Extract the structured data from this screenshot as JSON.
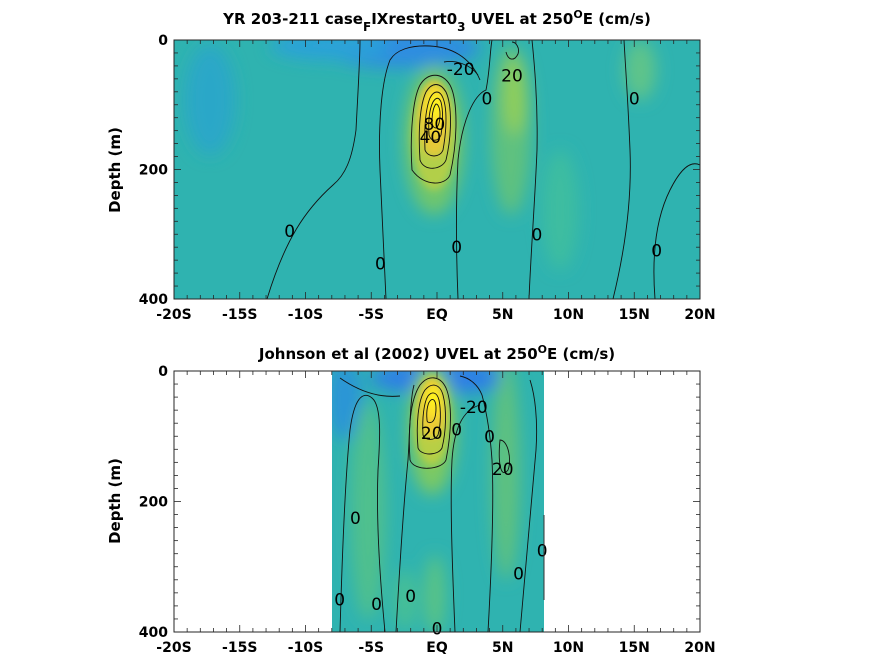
{
  "chart_data": [
    {
      "type": "heatmap",
      "title_main": "YR 203-211 case",
      "title_sub1": "F",
      "title_mid": "IXrestart0",
      "title_sub2": "3",
      "title_tail": " UVEL at 250",
      "title_sup": "O",
      "title_end": "E (cm/s)",
      "ylabel": "Depth (m)",
      "xticks": [
        "-20S",
        "-15S",
        "-10S",
        "-5S",
        "EQ",
        "5N",
        "10N",
        "15N",
        "20N"
      ],
      "yticks": [
        "0",
        "200",
        "400"
      ],
      "xlim": [
        -20,
        20
      ],
      "ylim": [
        0,
        400
      ],
      "data_xrange": [
        -20,
        20
      ],
      "contour_labels": [
        {
          "text": "-20",
          "x": 1.8,
          "y": 45
        },
        {
          "text": "20",
          "x": 5.7,
          "y": 55
        },
        {
          "text": "0",
          "x": 3.8,
          "y": 90
        },
        {
          "text": "0",
          "x": 15.0,
          "y": 90
        },
        {
          "text": "80",
          "x": -0.2,
          "y": 130
        },
        {
          "text": "40",
          "x": -0.5,
          "y": 150
        },
        {
          "text": "0",
          "x": -11.2,
          "y": 295
        },
        {
          "text": "0",
          "x": -4.3,
          "y": 345
        },
        {
          "text": "0",
          "x": 1.5,
          "y": 320
        },
        {
          "text": "0",
          "x": 7.6,
          "y": 300
        },
        {
          "text": "0",
          "x": 16.7,
          "y": 325
        }
      ]
    },
    {
      "type": "heatmap",
      "title_main": "Johnson et al (2002) UVEL at 250",
      "title_sup": "O",
      "title_end": "E (cm/s)",
      "ylabel": "Depth (m)",
      "xticks": [
        "-20S",
        "-15S",
        "-10S",
        "-5S",
        "EQ",
        "5N",
        "10N",
        "15N",
        "20N"
      ],
      "yticks": [
        "0",
        "200",
        "400"
      ],
      "xlim": [
        -20,
        20
      ],
      "ylim": [
        0,
        400
      ],
      "data_xrange": [
        -8,
        8.2
      ],
      "contour_labels": [
        {
          "text": "-20",
          "x": 2.8,
          "y": 55
        },
        {
          "text": "20",
          "x": -0.4,
          "y": 95
        },
        {
          "text": "0",
          "x": 1.5,
          "y": 90
        },
        {
          "text": "0",
          "x": 4.0,
          "y": 100
        },
        {
          "text": "20",
          "x": 5.0,
          "y": 150
        },
        {
          "text": "0",
          "x": -6.2,
          "y": 225
        },
        {
          "text": "0",
          "x": 8.0,
          "y": 275
        },
        {
          "text": "0",
          "x": 6.2,
          "y": 310
        },
        {
          "text": "0",
          "x": -7.4,
          "y": 350
        },
        {
          "text": "0",
          "x": -4.6,
          "y": 357
        },
        {
          "text": "0",
          "x": -2.0,
          "y": 345
        },
        {
          "text": "0",
          "x": 0.0,
          "y": 395
        }
      ]
    }
  ]
}
